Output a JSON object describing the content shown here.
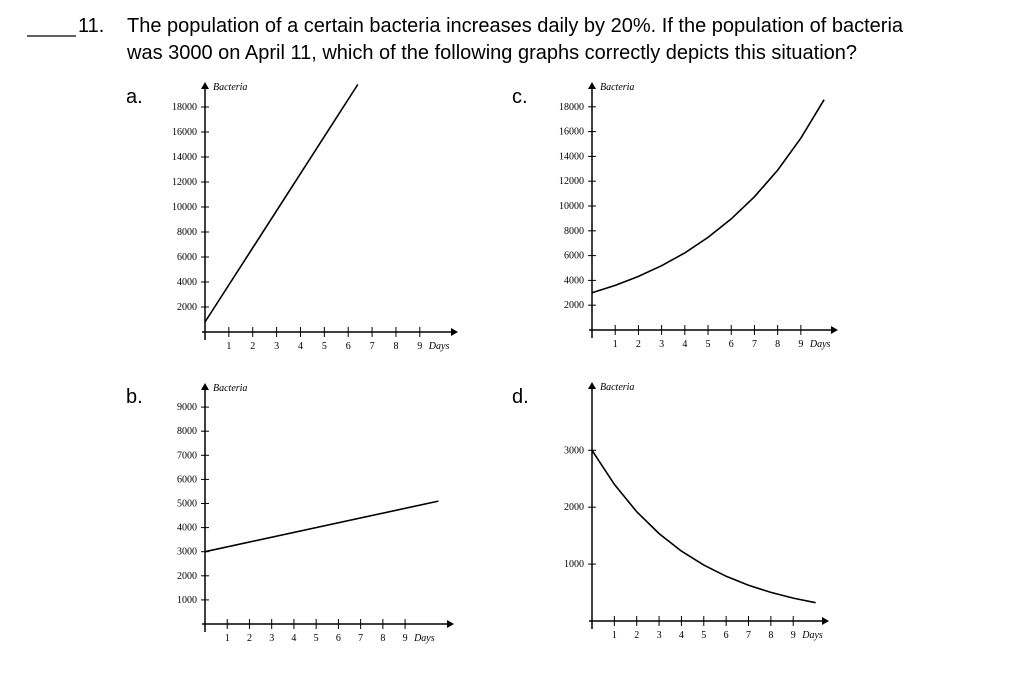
{
  "question": {
    "number": "11.",
    "line1": "The population of a certain bacteria increases daily by 20%.  If the population of bacteria",
    "line2": "was 3000 on April 11, which of the following graphs correctly depicts this situation?"
  },
  "graphs": [
    {
      "type": "line",
      "label": "a.",
      "y_label": "Bacteria",
      "x_label": "Days",
      "xlim": [
        0,
        10.6
      ],
      "ylim": [
        0,
        20000
      ],
      "xticks": [
        1,
        2,
        3,
        4,
        5,
        6,
        7,
        8,
        9
      ],
      "yticks": [
        2000,
        4000,
        6000,
        8000,
        10000,
        12000,
        14000,
        16000,
        18000
      ],
      "x": [
        0,
        6.4
      ],
      "values": [
        800,
        19800
      ]
    },
    {
      "type": "line",
      "label": "b.",
      "y_label": "Bacteria",
      "x_label": "Days",
      "xlim": [
        0,
        11.2
      ],
      "ylim": [
        0,
        10000
      ],
      "xticks": [
        1,
        2,
        3,
        4,
        5,
        6,
        7,
        8,
        9
      ],
      "yticks": [
        1000,
        2000,
        3000,
        4000,
        5000,
        6000,
        7000,
        8000,
        9000
      ],
      "x": [
        0,
        10.5
      ],
      "values": [
        3000,
        5100
      ]
    },
    {
      "type": "line",
      "label": "c.",
      "y_label": "Bacteria",
      "x_label": "Days",
      "xlim": [
        0,
        10.6
      ],
      "ylim": [
        0,
        20000
      ],
      "xticks": [
        1,
        2,
        3,
        4,
        5,
        6,
        7,
        8,
        9
      ],
      "yticks": [
        2000,
        4000,
        6000,
        8000,
        10000,
        12000,
        14000,
        16000,
        18000
      ],
      "x": [
        0,
        1,
        2,
        3,
        4,
        5,
        6,
        7,
        8,
        9,
        10
      ],
      "values": [
        3000,
        3600,
        4320,
        5184,
        6221,
        7465,
        8958,
        10750,
        12899,
        15479,
        18575
      ]
    },
    {
      "type": "line",
      "label": "d.",
      "y_label": "Bacteria",
      "x_label": "Days",
      "xlim": [
        0,
        10.6
      ],
      "ylim": [
        0,
        4200
      ],
      "xticks": [
        1,
        2,
        3,
        4,
        5,
        6,
        7,
        8,
        9
      ],
      "yticks": [
        1000,
        2000,
        3000
      ],
      "x": [
        0,
        1,
        2,
        3,
        4,
        5,
        6,
        7,
        8,
        9,
        10
      ],
      "values": [
        3000,
        2400,
        1920,
        1536,
        1229,
        983,
        786,
        629,
        503,
        403,
        322
      ]
    }
  ]
}
